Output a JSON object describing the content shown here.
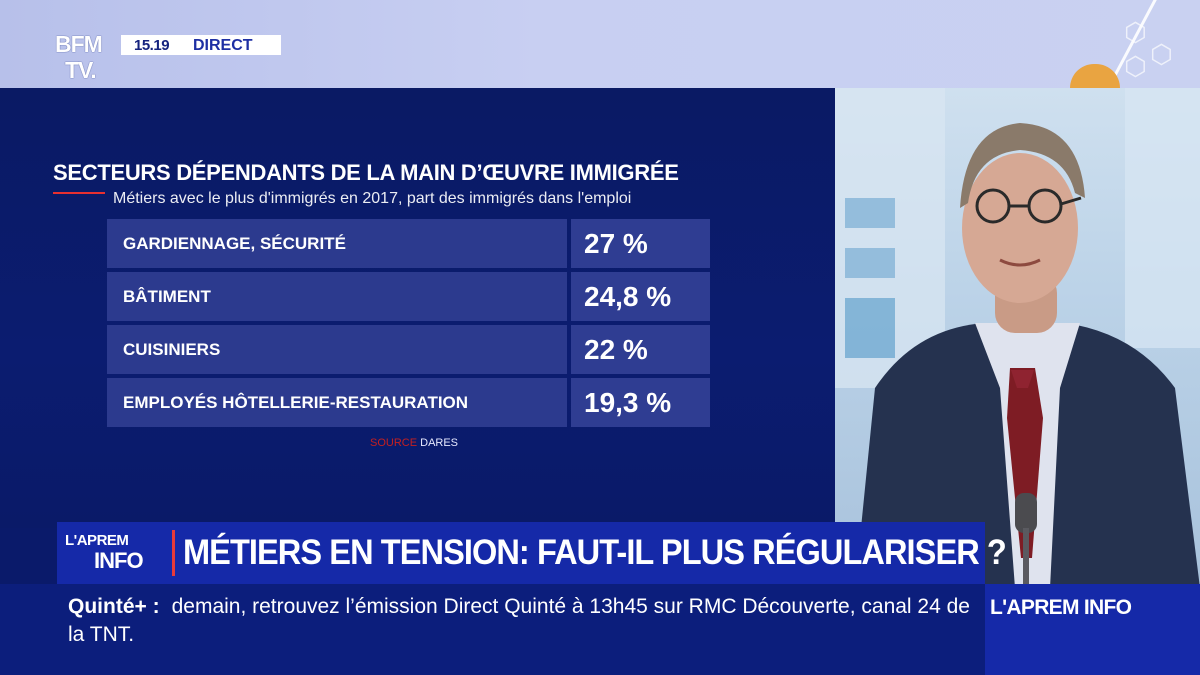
{
  "header": {
    "logo_line1": "BFM",
    "logo_line2": "TV.",
    "time": "15.19",
    "live": "DIRECT"
  },
  "infographic": {
    "title": "SECTEURS DÉPENDANTS DE LA MAIN D’ŒUVRE IMMIGRÉE",
    "subtitle": "Métiers avec le plus d'immigrés en 2017, part des immigrés dans l'emploi",
    "rows": [
      {
        "label": "GARDIENNAGE, SÉCURITÉ",
        "value": "27 %"
      },
      {
        "label": "BÂTIMENT",
        "value": "24,8 %"
      },
      {
        "label": "CUISINIERS",
        "value": "22 %"
      },
      {
        "label": "EMPLOYÉS HÔTELLERIE-RESTAURATION",
        "value": "19,3 %"
      }
    ],
    "source_key": "SOURCE",
    "source_value": "DARES"
  },
  "banner": {
    "logo_top": "L'APREM",
    "logo_bottom": "INFO",
    "headline": "MÉTIERS EN TENSION: FAUT-IL PLUS RÉGULARISER ?"
  },
  "ticker": {
    "label": "Quinté+ :",
    "text": "demain, retrouvez l’émission Direct Quinté à 13h45 sur RMC Découverte, canal 24 de la TNT.",
    "brand": "L'APREM INFO"
  },
  "colors": {
    "panel": "#0b1c70",
    "row": "#2c3a8e",
    "banner": "#1529a8",
    "accent_red": "#e83030"
  }
}
